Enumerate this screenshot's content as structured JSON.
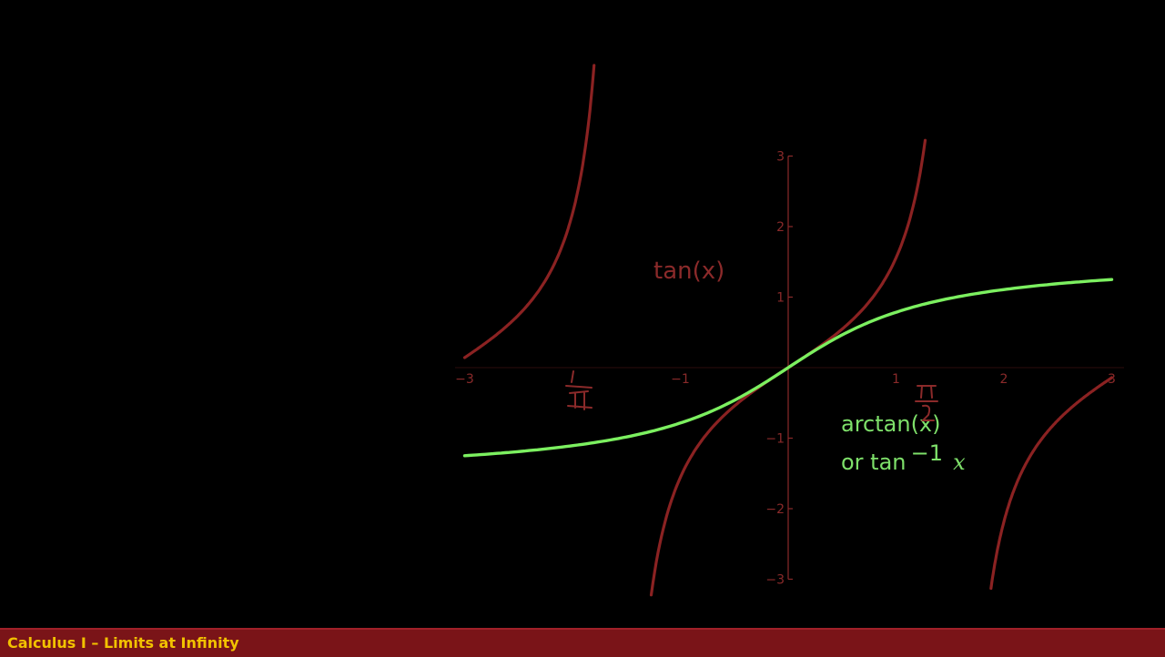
{
  "caption": {
    "text": "Calculus I – Limits at Infinity"
  },
  "colors": {
    "tan_curve": "#8b2222",
    "arctan_curve": "#7cf060",
    "axis": "#8a2a2a",
    "caption_bar": "#7a1418",
    "caption_text": "#f2c200"
  },
  "chart_data": {
    "type": "line",
    "xlim": [
      -3,
      3
    ],
    "ylim": [
      -3,
      3
    ],
    "x_ticks": [
      "−3",
      "−1",
      "1",
      "2",
      "3"
    ],
    "y_ticks": [
      "3",
      "2",
      "1",
      "−1",
      "−2",
      "−3"
    ],
    "grid": false,
    "series": [
      {
        "name": "tan(x)",
        "function": "tan",
        "branches": [
          [
            -3.0,
            -1.8
          ],
          [
            -1.27,
            1.27
          ],
          [
            1.88,
            3.0
          ]
        ]
      },
      {
        "name": "arctan(x)",
        "function": "arctan",
        "domain": [
          -3,
          3
        ]
      }
    ],
    "annotations": {
      "tan_label": "tan(x)",
      "arctan_label": "arctan(x)",
      "inverse_prefix": "or tan",
      "inverse_exp": "−1",
      "inverse_var": "x"
    }
  }
}
